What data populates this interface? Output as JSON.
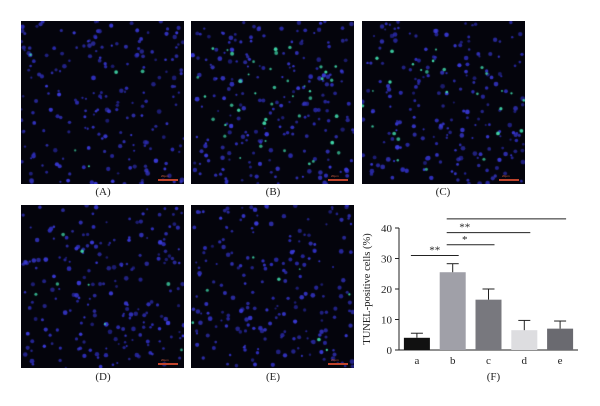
{
  "panels": [
    {
      "id": "A",
      "label": "(A)",
      "scale_text": "20μm",
      "green_density": 0.03
    },
    {
      "id": "B",
      "label": "(B)",
      "scale_text": "20μm",
      "green_density": 0.26
    },
    {
      "id": "C",
      "label": "(C)",
      "scale_text": "20μm",
      "green_density": 0.17
    },
    {
      "id": "D",
      "label": "(D)",
      "scale_text": "20μm",
      "green_density": 0.05
    },
    {
      "id": "E",
      "label": "(E)",
      "scale_text": "20μm",
      "green_density": 0.05
    }
  ],
  "colors": {
    "background": "#04040c",
    "nuclei": "#3a3ad8",
    "tunel_positive": "#3fd6a8",
    "scale_bar": "#c0442c"
  },
  "chart_label": "(F)",
  "chart_data": {
    "type": "bar",
    "categories": [
      "a",
      "b",
      "c",
      "d",
      "e"
    ],
    "values": [
      4,
      25.5,
      16.5,
      6.5,
      7
    ],
    "errors": [
      1.5,
      2.8,
      3.5,
      3.2,
      2.5
    ],
    "bar_colors": [
      "#111111",
      "#a0a0a8",
      "#78787e",
      "#dddde0",
      "#6a6a70"
    ],
    "ylabel": "TUNEL-positive cells (%)",
    "xlabel": "",
    "ylim": [
      0,
      40
    ],
    "yticks": [
      0,
      10,
      20,
      30,
      40
    ],
    "significance": [
      {
        "from": "a",
        "to": "b",
        "label": "**"
      },
      {
        "from": "b",
        "to": "c",
        "label": "*"
      },
      {
        "from": "b",
        "to": "d",
        "label": "**"
      },
      {
        "from": "b",
        "to": "e",
        "label": "**"
      }
    ]
  }
}
